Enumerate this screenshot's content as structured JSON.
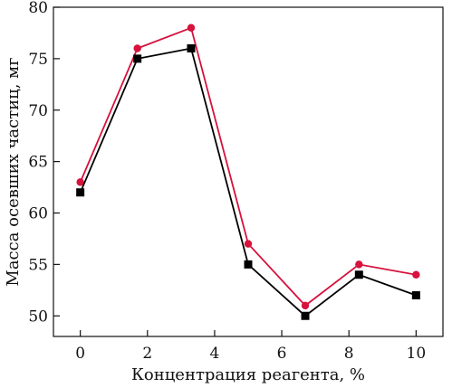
{
  "chart_data": {
    "type": "line",
    "xlabel": "Концентрация реагента, %",
    "ylabel": "Масса осевших частиц, мг",
    "xlim": [
      -0.8,
      10.8
    ],
    "ylim": [
      48,
      80
    ],
    "x_ticks": [
      0,
      2,
      4,
      6,
      8,
      10
    ],
    "y_ticks": [
      50,
      55,
      60,
      65,
      70,
      75,
      80
    ],
    "x_tick_labels": [
      "0",
      "2",
      "4",
      "6",
      "8",
      "10"
    ],
    "y_tick_labels": [
      "50",
      "55",
      "60",
      "65",
      "70",
      "75",
      "80"
    ],
    "grid": false,
    "legend": "none",
    "series": [
      {
        "marker": "circle",
        "color": "#d6123d",
        "x": [
          0,
          1.7,
          3.3,
          5.0,
          6.7,
          8.3,
          10.0
        ],
        "y": [
          63,
          76,
          78,
          57,
          51,
          55,
          54
        ]
      },
      {
        "marker": "square",
        "color": "#000000",
        "x": [
          0,
          1.7,
          3.3,
          5.0,
          6.7,
          8.3,
          10.0
        ],
        "y": [
          62,
          75,
          76,
          55,
          50,
          54,
          52
        ]
      }
    ]
  }
}
